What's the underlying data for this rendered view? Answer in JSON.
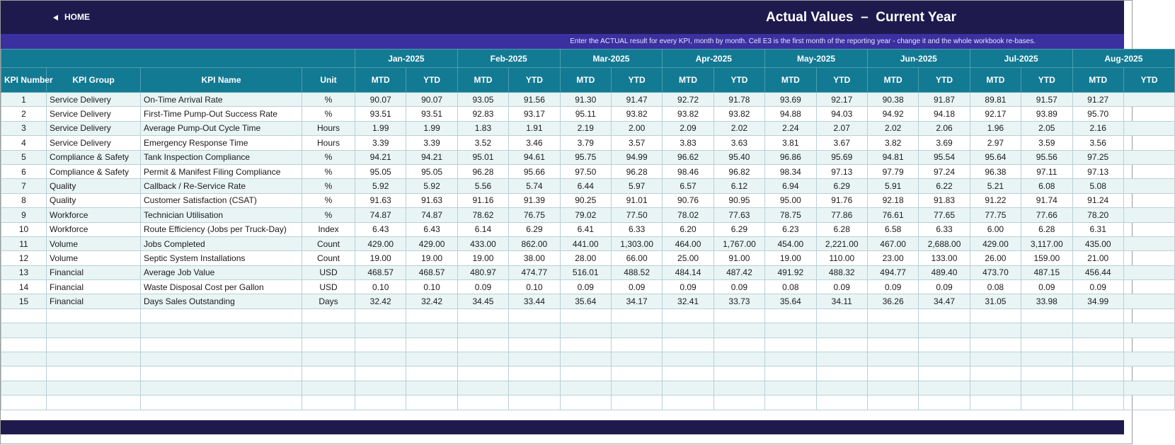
{
  "header": {
    "home": "HOME",
    "title": "Actual Values  –  Current Year",
    "note": "Enter the ACTUAL result for every KPI, month by month. Cell E3 is the first month of the reporting year - change it and the whole workbook re-bases."
  },
  "table": {
    "columns": [
      "KPI Number",
      "KPI Group",
      "KPI Name",
      "Unit"
    ],
    "months": [
      "Jan-2025",
      "Feb-2025",
      "Mar-2025",
      "Apr-2025",
      "May-2025",
      "Jun-2025",
      "Jul-2025",
      "Aug-2025"
    ],
    "subheaders": [
      "MTD",
      "YTD"
    ],
    "rows": [
      [
        "1",
        "Service Delivery",
        "On-Time Arrival Rate",
        "%",
        "90.07",
        "90.07",
        "93.05",
        "91.56",
        "91.30",
        "91.47",
        "92.72",
        "91.78",
        "93.69",
        "92.17",
        "90.38",
        "91.87",
        "89.81",
        "91.57",
        "91.27"
      ],
      [
        "2",
        "Service Delivery",
        "First-Time Pump-Out Success Rate",
        "%",
        "93.51",
        "93.51",
        "92.83",
        "93.17",
        "95.11",
        "93.82",
        "93.82",
        "93.82",
        "94.88",
        "94.03",
        "94.92",
        "94.18",
        "92.17",
        "93.89",
        "95.70"
      ],
      [
        "3",
        "Service Delivery",
        "Average Pump-Out Cycle Time",
        "Hours",
        "1.99",
        "1.99",
        "1.83",
        "1.91",
        "2.19",
        "2.00",
        "2.09",
        "2.02",
        "2.24",
        "2.07",
        "2.02",
        "2.06",
        "1.96",
        "2.05",
        "2.16"
      ],
      [
        "4",
        "Service Delivery",
        "Emergency Response Time",
        "Hours",
        "3.39",
        "3.39",
        "3.52",
        "3.46",
        "3.79",
        "3.57",
        "3.83",
        "3.63",
        "3.81",
        "3.67",
        "3.82",
        "3.69",
        "2.97",
        "3.59",
        "3.56"
      ],
      [
        "5",
        "Compliance & Safety",
        "Tank Inspection Compliance",
        "%",
        "94.21",
        "94.21",
        "95.01",
        "94.61",
        "95.75",
        "94.99",
        "96.62",
        "95.40",
        "96.86",
        "95.69",
        "94.81",
        "95.54",
        "95.64",
        "95.56",
        "97.25"
      ],
      [
        "6",
        "Compliance & Safety",
        "Permit & Manifest Filing Compliance",
        "%",
        "95.05",
        "95.05",
        "96.28",
        "95.66",
        "97.50",
        "96.28",
        "98.46",
        "96.82",
        "98.34",
        "97.13",
        "97.79",
        "97.24",
        "96.38",
        "97.11",
        "97.13"
      ],
      [
        "7",
        "Quality",
        "Callback / Re-Service Rate",
        "%",
        "5.92",
        "5.92",
        "5.56",
        "5.74",
        "6.44",
        "5.97",
        "6.57",
        "6.12",
        "6.94",
        "6.29",
        "5.91",
        "6.22",
        "5.21",
        "6.08",
        "5.08"
      ],
      [
        "8",
        "Quality",
        "Customer Satisfaction (CSAT)",
        "%",
        "91.63",
        "91.63",
        "91.16",
        "91.39",
        "90.25",
        "91.01",
        "90.76",
        "90.95",
        "95.00",
        "91.76",
        "92.18",
        "91.83",
        "91.22",
        "91.74",
        "91.24"
      ],
      [
        "9",
        "Workforce",
        "Technician Utilisation",
        "%",
        "74.87",
        "74.87",
        "78.62",
        "76.75",
        "79.02",
        "77.50",
        "78.02",
        "77.63",
        "78.75",
        "77.86",
        "76.61",
        "77.65",
        "77.75",
        "77.66",
        "78.20"
      ],
      [
        "10",
        "Workforce",
        "Route Efficiency (Jobs per Truck-Day)",
        "Index",
        "6.43",
        "6.43",
        "6.14",
        "6.29",
        "6.41",
        "6.33",
        "6.20",
        "6.29",
        "6.23",
        "6.28",
        "6.58",
        "6.33",
        "6.00",
        "6.28",
        "6.31"
      ],
      [
        "11",
        "Volume",
        "Jobs Completed",
        "Count",
        "429.00",
        "429.00",
        "433.00",
        "862.00",
        "441.00",
        "1,303.00",
        "464.00",
        "1,767.00",
        "454.00",
        "2,221.00",
        "467.00",
        "2,688.00",
        "429.00",
        "3,117.00",
        "435.00"
      ],
      [
        "12",
        "Volume",
        "Septic System Installations",
        "Count",
        "19.00",
        "19.00",
        "19.00",
        "38.00",
        "28.00",
        "66.00",
        "25.00",
        "91.00",
        "19.00",
        "110.00",
        "23.00",
        "133.00",
        "26.00",
        "159.00",
        "21.00"
      ],
      [
        "13",
        "Financial",
        "Average Job Value",
        "USD",
        "468.57",
        "468.57",
        "480.97",
        "474.77",
        "516.01",
        "488.52",
        "484.14",
        "487.42",
        "491.92",
        "488.32",
        "494.77",
        "489.40",
        "473.70",
        "487.15",
        "456.44"
      ],
      [
        "14",
        "Financial",
        "Waste Disposal Cost per Gallon",
        "USD",
        "0.10",
        "0.10",
        "0.09",
        "0.10",
        "0.09",
        "0.09",
        "0.09",
        "0.09",
        "0.08",
        "0.09",
        "0.09",
        "0.09",
        "0.08",
        "0.09",
        "0.09"
      ],
      [
        "15",
        "Financial",
        "Days Sales Outstanding",
        "Days",
        "32.42",
        "32.42",
        "34.45",
        "33.44",
        "35.64",
        "34.17",
        "32.41",
        "33.73",
        "35.64",
        "34.11",
        "36.26",
        "34.47",
        "31.05",
        "33.98",
        "34.99"
      ]
    ]
  }
}
